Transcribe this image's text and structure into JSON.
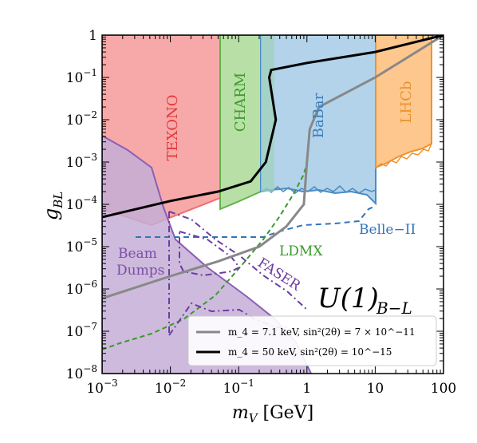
{
  "chart_data": {
    "type": "area",
    "title": "",
    "xlabel": "m_V  [GeV]",
    "ylabel": "g_BL",
    "xscale": "log",
    "yscale": "log",
    "xlim": [
      0.001,
      100
    ],
    "ylim": [
      1e-08,
      1
    ],
    "x_ticks": [
      "10^-3",
      "10^-2",
      "10^-1",
      "1",
      "10",
      "100"
    ],
    "y_ticks": [
      "10^-8",
      "10^-7",
      "10^-6",
      "10^-5",
      "10^-4",
      "10^-3",
      "10^-2",
      "10^-1",
      "1"
    ],
    "model_label": "U(1)_{B−L}",
    "regions": [
      {
        "name": "TEXONO",
        "color": "#f26d6d",
        "fill": "#f7a9a9",
        "x_range": [
          0.001,
          0.06
        ]
      },
      {
        "name": "CHARM",
        "color": "#5fb34a",
        "fill": "#b8e0a6",
        "x_range": [
          0.06,
          0.2
        ]
      },
      {
        "name": "BaBar",
        "color": "#4a8cc4",
        "fill": "#b3d3ea",
        "x_range": [
          0.2,
          10
        ]
      },
      {
        "name": "LHCb",
        "color": "#f0922f",
        "fill": "#fdc78e",
        "x_range": [
          10,
          70
        ]
      },
      {
        "name": "Beam Dumps",
        "color": "#8a5fb5",
        "fill": "#c6aed6",
        "x_range": [
          0.001,
          2
        ]
      }
    ],
    "projections": [
      {
        "name": "Belle−II",
        "color": "#2f76b8",
        "style": "dashed"
      },
      {
        "name": "LDMX",
        "color": "#3a9a2e",
        "style": "dashed"
      },
      {
        "name": "FASER",
        "color": "#6a3ea1",
        "style": "dash-dot"
      }
    ],
    "series": [
      {
        "name": "m_4 = 7.1 keV,  sin²(2θ) = 7 × 10^−11",
        "color": "#888888",
        "x": [
          0.001,
          0.01,
          0.05,
          0.2,
          0.5,
          0.9,
          1.0,
          1.1,
          1.5,
          10,
          100
        ],
        "y": [
          6e-07,
          2e-06,
          4.5e-06,
          1e-05,
          3e-05,
          0.0001,
          0.001,
          0.006,
          0.02,
          0.1,
          1
        ]
      },
      {
        "name": "m_4 = 50 keV,  sin²(2θ) = 10^−15",
        "color": "#000000",
        "x": [
          0.001,
          0.01,
          0.05,
          0.15,
          0.25,
          0.35,
          0.28,
          0.3,
          1.0,
          10,
          100
        ],
        "y": [
          5e-05,
          0.00012,
          0.0002,
          0.00035,
          0.001,
          0.01,
          0.1,
          0.15,
          0.22,
          0.4,
          1
        ]
      }
    ],
    "legend_position": "lower-right",
    "grid": false
  }
}
